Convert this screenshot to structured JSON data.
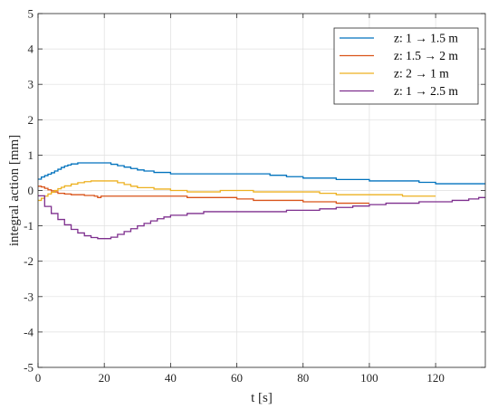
{
  "chart_data": {
    "type": "line",
    "title": "",
    "xlabel": "t [s]",
    "ylabel": "integral action [mm]",
    "xlim": [
      0,
      135
    ],
    "ylim": [
      -5,
      5
    ],
    "xticks": [
      0,
      20,
      40,
      60,
      80,
      100,
      120
    ],
    "yticks": [
      -5,
      -4,
      -3,
      -2,
      -1,
      0,
      1,
      2,
      3,
      4,
      5
    ],
    "grid": true,
    "legend_position": "top-right",
    "series": [
      {
        "name": "z: 1 → 1.5 m",
        "color": "#0072BD",
        "x": [
          0,
          1,
          2,
          3,
          4,
          5,
          6,
          7,
          8,
          9,
          10,
          12,
          14,
          16,
          18,
          20,
          22,
          24,
          26,
          28,
          30,
          32,
          35,
          40,
          45,
          50,
          55,
          60,
          65,
          70,
          75,
          80,
          85,
          90,
          95,
          100,
          105,
          110,
          115,
          120,
          125,
          130,
          135
        ],
        "y": [
          0.32,
          0.38,
          0.42,
          0.46,
          0.5,
          0.55,
          0.6,
          0.65,
          0.69,
          0.72,
          0.75,
          0.78,
          0.78,
          0.78,
          0.78,
          0.78,
          0.74,
          0.7,
          0.66,
          0.62,
          0.58,
          0.55,
          0.51,
          0.47,
          0.47,
          0.47,
          0.47,
          0.47,
          0.47,
          0.43,
          0.39,
          0.35,
          0.35,
          0.31,
          0.31,
          0.27,
          0.27,
          0.27,
          0.23,
          0.19,
          0.19,
          0.19,
          0.19
        ]
      },
      {
        "name": "z: 1.5 → 2 m",
        "color": "#D95319",
        "x": [
          0,
          1,
          2,
          3,
          4,
          5,
          6,
          8,
          10,
          14,
          17,
          18,
          19,
          20,
          25,
          30,
          35,
          40,
          45,
          50,
          55,
          60,
          65,
          70,
          75,
          80,
          85,
          90,
          95,
          100
        ],
        "y": [
          0.12,
          0.1,
          0.06,
          0.02,
          -0.01,
          -0.04,
          -0.08,
          -0.1,
          -0.12,
          -0.14,
          -0.16,
          -0.2,
          -0.16,
          -0.16,
          -0.16,
          -0.16,
          -0.16,
          -0.16,
          -0.2,
          -0.2,
          -0.2,
          -0.24,
          -0.28,
          -0.28,
          -0.28,
          -0.32,
          -0.32,
          -0.36,
          -0.36,
          -0.36
        ]
      },
      {
        "name": "z: 2 → 1 m",
        "color": "#EDB120",
        "x": [
          0,
          1,
          2,
          3,
          4,
          5,
          6,
          7,
          8,
          10,
          12,
          14,
          16,
          18,
          20,
          22,
          24,
          26,
          28,
          30,
          35,
          40,
          45,
          50,
          55,
          60,
          65,
          70,
          75,
          80,
          85,
          90,
          95,
          100,
          105,
          110,
          115,
          120
        ],
        "y": [
          -0.28,
          -0.22,
          -0.16,
          -0.1,
          -0.05,
          0.0,
          0.05,
          0.09,
          0.13,
          0.18,
          0.22,
          0.25,
          0.27,
          0.27,
          0.27,
          0.27,
          0.22,
          0.17,
          0.12,
          0.08,
          0.04,
          0.0,
          -0.04,
          -0.04,
          0.0,
          0.0,
          -0.04,
          -0.04,
          -0.04,
          -0.04,
          -0.08,
          -0.12,
          -0.12,
          -0.12,
          -0.12,
          -0.16,
          -0.16,
          -0.16
        ]
      },
      {
        "name": "z: 1 → 2.5 m",
        "color": "#7E2F8E",
        "x": [
          0,
          2,
          4,
          6,
          8,
          10,
          12,
          14,
          16,
          18,
          20,
          22,
          24,
          26,
          28,
          30,
          32,
          34,
          36,
          38,
          40,
          45,
          50,
          55,
          60,
          65,
          70,
          75,
          80,
          85,
          90,
          95,
          100,
          105,
          110,
          115,
          120,
          125,
          130,
          133,
          135
        ],
        "y": [
          -0.15,
          -0.45,
          -0.65,
          -0.82,
          -0.97,
          -1.1,
          -1.2,
          -1.28,
          -1.33,
          -1.36,
          -1.36,
          -1.32,
          -1.24,
          -1.16,
          -1.08,
          -1.0,
          -0.93,
          -0.86,
          -0.8,
          -0.75,
          -0.7,
          -0.65,
          -0.6,
          -0.6,
          -0.6,
          -0.6,
          -0.6,
          -0.56,
          -0.56,
          -0.52,
          -0.48,
          -0.44,
          -0.4,
          -0.36,
          -0.36,
          -0.32,
          -0.32,
          -0.28,
          -0.24,
          -0.2,
          -0.2
        ]
      }
    ]
  }
}
